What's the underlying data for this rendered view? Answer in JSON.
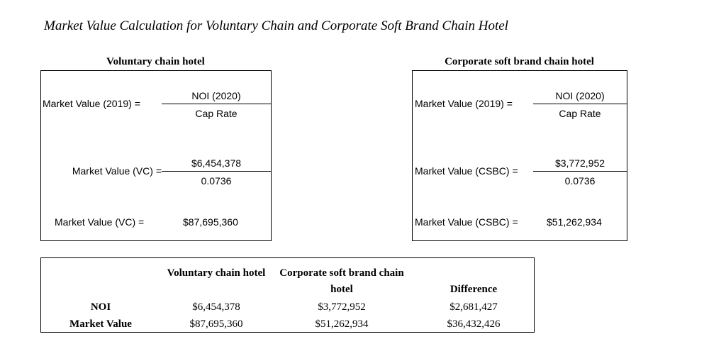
{
  "title": "Market Value Calculation for Voluntary Chain and Corporate Soft Brand Chain Hotel",
  "panels": [
    {
      "heading": "Voluntary chain hotel",
      "rows": [
        {
          "label": "Market Value (2019) =",
          "numerator": "NOI (2020)",
          "denominator": "Cap Rate"
        },
        {
          "label": "Market Value (VC) =",
          "numerator": "$6,454,378",
          "denominator": "0.0736"
        },
        {
          "label": "Market Value (VC) =",
          "result": "$87,695,360"
        }
      ]
    },
    {
      "heading": "Corporate soft brand chain hotel",
      "rows": [
        {
          "label": "Market Value (2019) =",
          "numerator": "NOI (2020)",
          "denominator": "Cap Rate"
        },
        {
          "label": "Market Value (CSBC) =",
          "numerator": "$3,772,952",
          "denominator": "0.0736"
        },
        {
          "label": "Market Value (CSBC) =",
          "result": "$51,262,934"
        }
      ]
    }
  ],
  "table": {
    "headers": [
      "Voluntary chain hotel",
      "Corporate soft brand chain hotel",
      "Difference"
    ],
    "rows": [
      [
        "NOI",
        "$6,454,378",
        "$3,772,952",
        "$2,681,427"
      ],
      [
        "Market Value",
        "$87,695,360",
        "$51,262,934",
        "$36,432,426"
      ]
    ]
  }
}
